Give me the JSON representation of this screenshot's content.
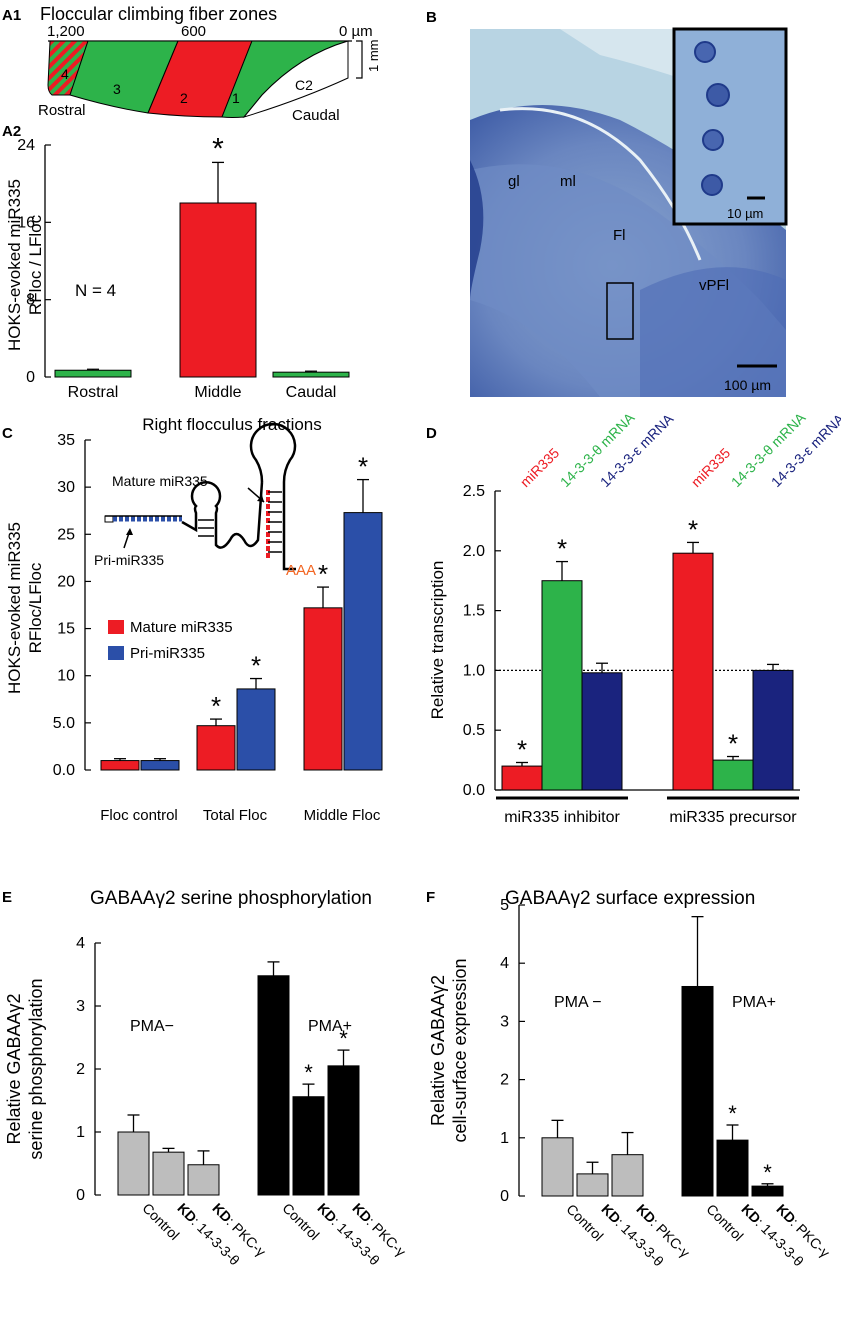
{
  "panel_labels": {
    "a1": "A1",
    "a2": "A2",
    "b": "B",
    "c": "C",
    "d": "D",
    "e": "E",
    "f": "F"
  },
  "colors": {
    "red": "#ed1c24",
    "green": "#2db34a",
    "blue": "#2b4fa8",
    "black": "#000000",
    "gray": "#bdbdbd",
    "orange": "#f26522",
    "dark_blue": "#1a237e"
  },
  "a1": {
    "title": "Floccular climbing fiber zones",
    "ticks": [
      "1,200",
      "600",
      "0 µm"
    ],
    "scale": "1 mm",
    "zones": [
      "4",
      "3",
      "2",
      "1",
      "C2"
    ],
    "rostral": "Rostral",
    "caudal": "Caudal"
  },
  "micrograph": {
    "labels": {
      "gl": "gl",
      "ml": "ml",
      "fl": "Fl",
      "vpfl": "vPFl"
    },
    "inset_scale": "10 µm",
    "main_scale": "100 µm"
  },
  "significance_marker": "*",
  "chart_data": [
    {
      "id": "A2",
      "type": "bar",
      "ylabel": [
        "HOKS-evoked miR335",
        "RFloc / LFloc"
      ],
      "categories": [
        "Rostral",
        "Middle",
        "Caudal"
      ],
      "values": [
        0.7,
        18.0,
        0.5
      ],
      "errors": [
        0.1,
        4.2,
        0.1
      ],
      "colors": [
        "green",
        "red",
        "green"
      ],
      "significant": [
        false,
        true,
        false
      ],
      "ylim": [
        0,
        24
      ],
      "yticks": [
        "0",
        "8",
        "16",
        "24"
      ],
      "annotation": "N = 4"
    },
    {
      "id": "C",
      "type": "bar",
      "title": "Right flocculus fractions",
      "ylabel": [
        "HOKS-evoked miR335",
        "RFloc/LFloc"
      ],
      "categories": [
        "Floc control",
        "Total Floc",
        "Middle Floc"
      ],
      "series": [
        {
          "name": "Mature miR335",
          "color": "red",
          "values": [
            1.0,
            4.7,
            17.2
          ],
          "errors": [
            0.2,
            0.7,
            2.2
          ],
          "significant": [
            false,
            true,
            true
          ]
        },
        {
          "name": "Pri-miR335",
          "color": "blue",
          "values": [
            1.0,
            8.6,
            27.3
          ],
          "errors": [
            0.2,
            1.1,
            3.5
          ],
          "significant": [
            false,
            true,
            true
          ]
        }
      ],
      "ylim": [
        0,
        35
      ],
      "yticks": [
        "0.0",
        "5.0",
        "10",
        "15",
        "20",
        "25",
        "30",
        "35"
      ],
      "diagram": {
        "mature": "Mature miR335",
        "pri": "Pri-miR335",
        "polyA": "AAA"
      }
    },
    {
      "id": "D",
      "type": "bar",
      "ylabel": "Relative transcription",
      "groups": [
        "miR335 inhibitor",
        "miR335 precursor"
      ],
      "series": [
        {
          "name": "miR335",
          "color": "red",
          "values": [
            0.2,
            1.98
          ],
          "errors": [
            0.03,
            0.09
          ],
          "significant": [
            true,
            true
          ]
        },
        {
          "name": "14-3-3-θ mRNA",
          "color": "green",
          "values": [
            1.75,
            0.25
          ],
          "errors": [
            0.16,
            0.03
          ],
          "significant": [
            true,
            true
          ]
        },
        {
          "name": "14-3-3-ε mRNA",
          "color": "dark_blue",
          "values": [
            0.98,
            1.0
          ],
          "errors": [
            0.08,
            0.05
          ],
          "significant": [
            false,
            false
          ]
        }
      ],
      "ylim": [
        0,
        2.5
      ],
      "yticks": [
        "0.0",
        "0.5",
        "1.0",
        "1.5",
        "2.0",
        "2.5"
      ],
      "reference_line": 1.0
    },
    {
      "id": "E",
      "type": "bar",
      "title": "GABAAγ2 serine phosphorylation",
      "ylabel": [
        "Relative GABAAγ2",
        "serine phosphorylation"
      ],
      "groups": [
        {
          "label": "PMA−",
          "color": "gray",
          "categories": [
            "Control",
            "14-3-3-θ",
            "PKC-γ"
          ],
          "values": [
            1.0,
            0.68,
            0.48
          ],
          "errors": [
            0.27,
            0.06,
            0.22
          ],
          "significant": [
            false,
            false,
            false
          ]
        },
        {
          "label": "PMA+",
          "color": "black",
          "categories": [
            "Control",
            "14-3-3-θ",
            "PKC-γ"
          ],
          "values": [
            3.48,
            1.56,
            2.05
          ],
          "errors": [
            0.22,
            0.2,
            0.25
          ],
          "significant": [
            false,
            true,
            true
          ]
        }
      ],
      "kd_prefix": "KD",
      "ylim": [
        0,
        4
      ],
      "yticks": [
        "0",
        "1",
        "2",
        "3",
        "4"
      ]
    },
    {
      "id": "F",
      "type": "bar",
      "title": "GABAAγ2 surface expression",
      "ylabel": [
        "Relative GABAAγ2",
        "cell-surface expression"
      ],
      "groups": [
        {
          "label": "PMA −",
          "color": "gray",
          "categories": [
            "Control",
            "14-3-3-θ",
            "PKC-γ"
          ],
          "values": [
            1.0,
            0.38,
            0.71
          ],
          "errors": [
            0.3,
            0.2,
            0.38
          ],
          "significant": [
            false,
            false,
            false
          ]
        },
        {
          "label": "PMA+",
          "color": "black",
          "categories": [
            "Control",
            "14-3-3-θ",
            "PKC-γ"
          ],
          "values": [
            3.6,
            0.96,
            0.17
          ],
          "errors": [
            1.2,
            0.26,
            0.04
          ],
          "significant": [
            false,
            true,
            true
          ]
        }
      ],
      "kd_prefix": "KD",
      "ylim": [
        0,
        5
      ],
      "yticks": [
        "0",
        "1",
        "2",
        "3",
        "4",
        "5"
      ]
    }
  ]
}
